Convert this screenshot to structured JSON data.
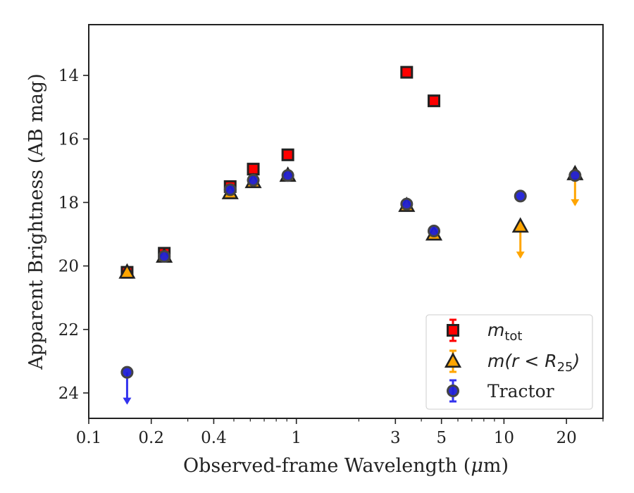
{
  "chart_data": {
    "type": "scatter",
    "xlabel_pre": "Observed-frame Wavelength (",
    "xlabel_mu": "μ",
    "xlabel_post": "m)",
    "ylabel": "Apparent Brightness (AB mag)",
    "x_scale": "log",
    "xlim": [
      0.1,
      30
    ],
    "ylim": [
      24.8,
      12.4
    ],
    "y_inverted": true,
    "xticks": [
      0.1,
      0.2,
      0.4,
      1,
      3,
      5,
      10,
      20
    ],
    "xtick_labels": [
      "0.1",
      "0.2",
      "0.4",
      "1",
      "3",
      "5",
      "10",
      "20"
    ],
    "yticks": [
      14,
      16,
      18,
      20,
      22,
      24
    ],
    "ytick_labels": [
      "14",
      "16",
      "18",
      "20",
      "22",
      "24"
    ],
    "grid": false,
    "legend_position": "bottom-right",
    "legend": [
      {
        "marker": "square",
        "label_main": "m",
        "label_sub": "tot"
      },
      {
        "marker": "triangle",
        "label_main": "m(r < R",
        "label_sub": "25",
        "label_tail": ")"
      },
      {
        "marker": "circle",
        "label_text": "Tractor"
      }
    ],
    "colors": {
      "m_tot": "#ff0000",
      "m_r25": "#ffa500",
      "tractor": "#1f1fd6",
      "tractor_arrow": "#3333ee",
      "edge": "#222222"
    },
    "series": [
      {
        "key": "m_tot",
        "marker": "square",
        "points": [
          {
            "x": 0.153,
            "y": 20.2
          },
          {
            "x": 0.231,
            "y": 19.6
          },
          {
            "x": 0.48,
            "y": 17.5
          },
          {
            "x": 0.62,
            "y": 16.95
          },
          {
            "x": 0.91,
            "y": 16.5
          },
          {
            "x": 3.4,
            "y": 13.9
          },
          {
            "x": 4.6,
            "y": 14.8
          }
        ]
      },
      {
        "key": "m_r25",
        "marker": "triangle",
        "points": [
          {
            "x": 0.153,
            "y": 20.2
          },
          {
            "x": 0.231,
            "y": 19.7
          },
          {
            "x": 0.48,
            "y": 17.7
          },
          {
            "x": 0.62,
            "y": 17.35
          },
          {
            "x": 0.91,
            "y": 17.15
          },
          {
            "x": 3.4,
            "y": 18.1
          },
          {
            "x": 4.6,
            "y": 19.0
          },
          {
            "x": 12.0,
            "y": 18.75,
            "upper_limit": true
          },
          {
            "x": 22.0,
            "y": 17.1,
            "upper_limit": true
          }
        ]
      },
      {
        "key": "tractor",
        "marker": "circle",
        "points": [
          {
            "x": 0.153,
            "y": 23.35,
            "upper_limit": true
          },
          {
            "x": 0.231,
            "y": 19.7
          },
          {
            "x": 0.48,
            "y": 17.6
          },
          {
            "x": 0.62,
            "y": 17.3
          },
          {
            "x": 0.91,
            "y": 17.15
          },
          {
            "x": 3.4,
            "y": 18.05
          },
          {
            "x": 4.6,
            "y": 18.9
          },
          {
            "x": 12.0,
            "y": 17.8
          },
          {
            "x": 22.0,
            "y": 17.15
          }
        ]
      }
    ]
  }
}
